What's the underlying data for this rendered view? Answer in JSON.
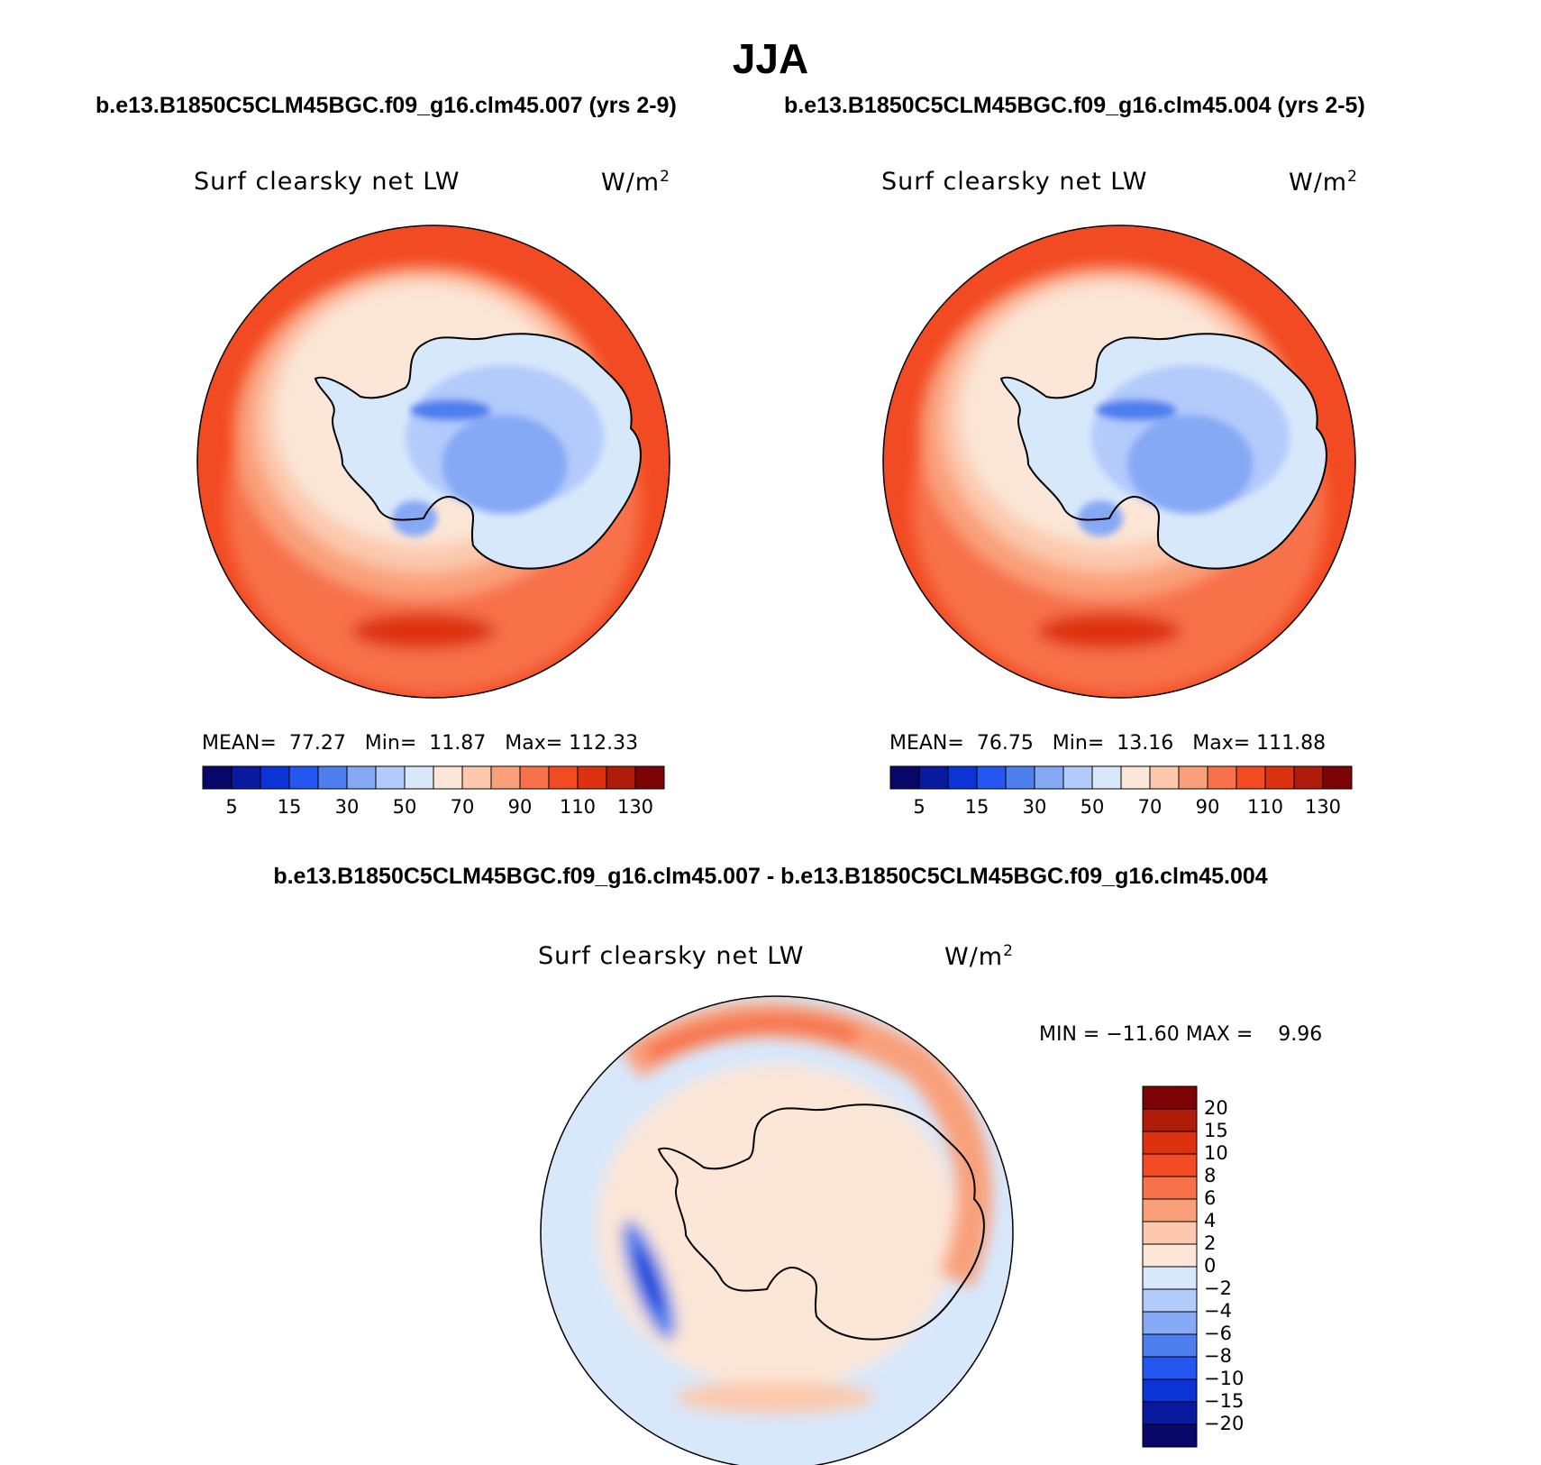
{
  "header": {
    "season": "JJA",
    "case1_title": "b.e13.B1850C5CLM45BGC.f09_g16.clm45.007 (yrs 2-9)",
    "case2_title": "b.e13.B1850C5CLM45BGC.f09_g16.clm45.004 (yrs 2-5)",
    "diff_title": "b.e13.B1850C5CLM45BGC.f09_g16.clm45.007 - b.e13.B1850C5CLM45BGC.f09_g16.clm45.004"
  },
  "chart_data": [
    {
      "type": "heatmap",
      "projection": "south-polar-stereographic",
      "variable": "Surf clearsky net LW",
      "units_base": "W/m",
      "units_exp": "2",
      "stats": {
        "mean_label": "MEAN=",
        "mean": "77.27",
        "min_label": "Min=",
        "min": "11.87",
        "max_label": "Max=",
        "max": "112.33"
      },
      "colorbar": {
        "orientation": "horizontal",
        "tick_labels": [
          "5",
          "15",
          "30",
          "50",
          "70",
          "90",
          "110",
          "130"
        ],
        "colors": [
          "#08086b",
          "#0a1a9e",
          "#0b33d6",
          "#2457f0",
          "#4d7fee",
          "#86a9f5",
          "#b3cbfb",
          "#d8e8fb",
          "#fbe6d7",
          "#fcc9ae",
          "#f9a07a",
          "#f7714a",
          "#f24a22",
          "#dd3210",
          "#b01c0a",
          "#7c0405"
        ]
      }
    },
    {
      "type": "heatmap",
      "projection": "south-polar-stereographic",
      "variable": "Surf clearsky net LW",
      "units_base": "W/m",
      "units_exp": "2",
      "stats": {
        "mean_label": "MEAN=",
        "mean": "76.75",
        "min_label": "Min=",
        "min": "13.16",
        "max_label": "Max=",
        "max": "111.88"
      },
      "colorbar": {
        "orientation": "horizontal",
        "tick_labels": [
          "5",
          "15",
          "30",
          "50",
          "70",
          "90",
          "110",
          "130"
        ],
        "colors": [
          "#08086b",
          "#0a1a9e",
          "#0b33d6",
          "#2457f0",
          "#4d7fee",
          "#86a9f5",
          "#b3cbfb",
          "#d8e8fb",
          "#fbe6d7",
          "#fcc9ae",
          "#f9a07a",
          "#f7714a",
          "#f24a22",
          "#dd3210",
          "#b01c0a",
          "#7c0405"
        ]
      }
    },
    {
      "type": "heatmap",
      "projection": "south-polar-stereographic",
      "variable": "Surf clearsky net LW",
      "units_base": "W/m",
      "units_exp": "2",
      "stats_text": "MIN = −11.60 MAX =    9.96",
      "colorbar": {
        "orientation": "vertical",
        "tick_labels": [
          "20",
          "15",
          "10",
          "8",
          "6",
          "4",
          "2",
          "0",
          "−2",
          "−4",
          "−6",
          "−8",
          "−10",
          "−15",
          "−20"
        ],
        "colors": [
          "#7c0405",
          "#b01c0a",
          "#dd3210",
          "#f24a22",
          "#f7714a",
          "#f9a07a",
          "#fcc9ae",
          "#fbe6d7",
          "#d8e8fb",
          "#b3cbfb",
          "#86a9f5",
          "#4d7fee",
          "#2457f0",
          "#0b33d6",
          "#0a1a9e",
          "#08086b"
        ]
      }
    }
  ]
}
